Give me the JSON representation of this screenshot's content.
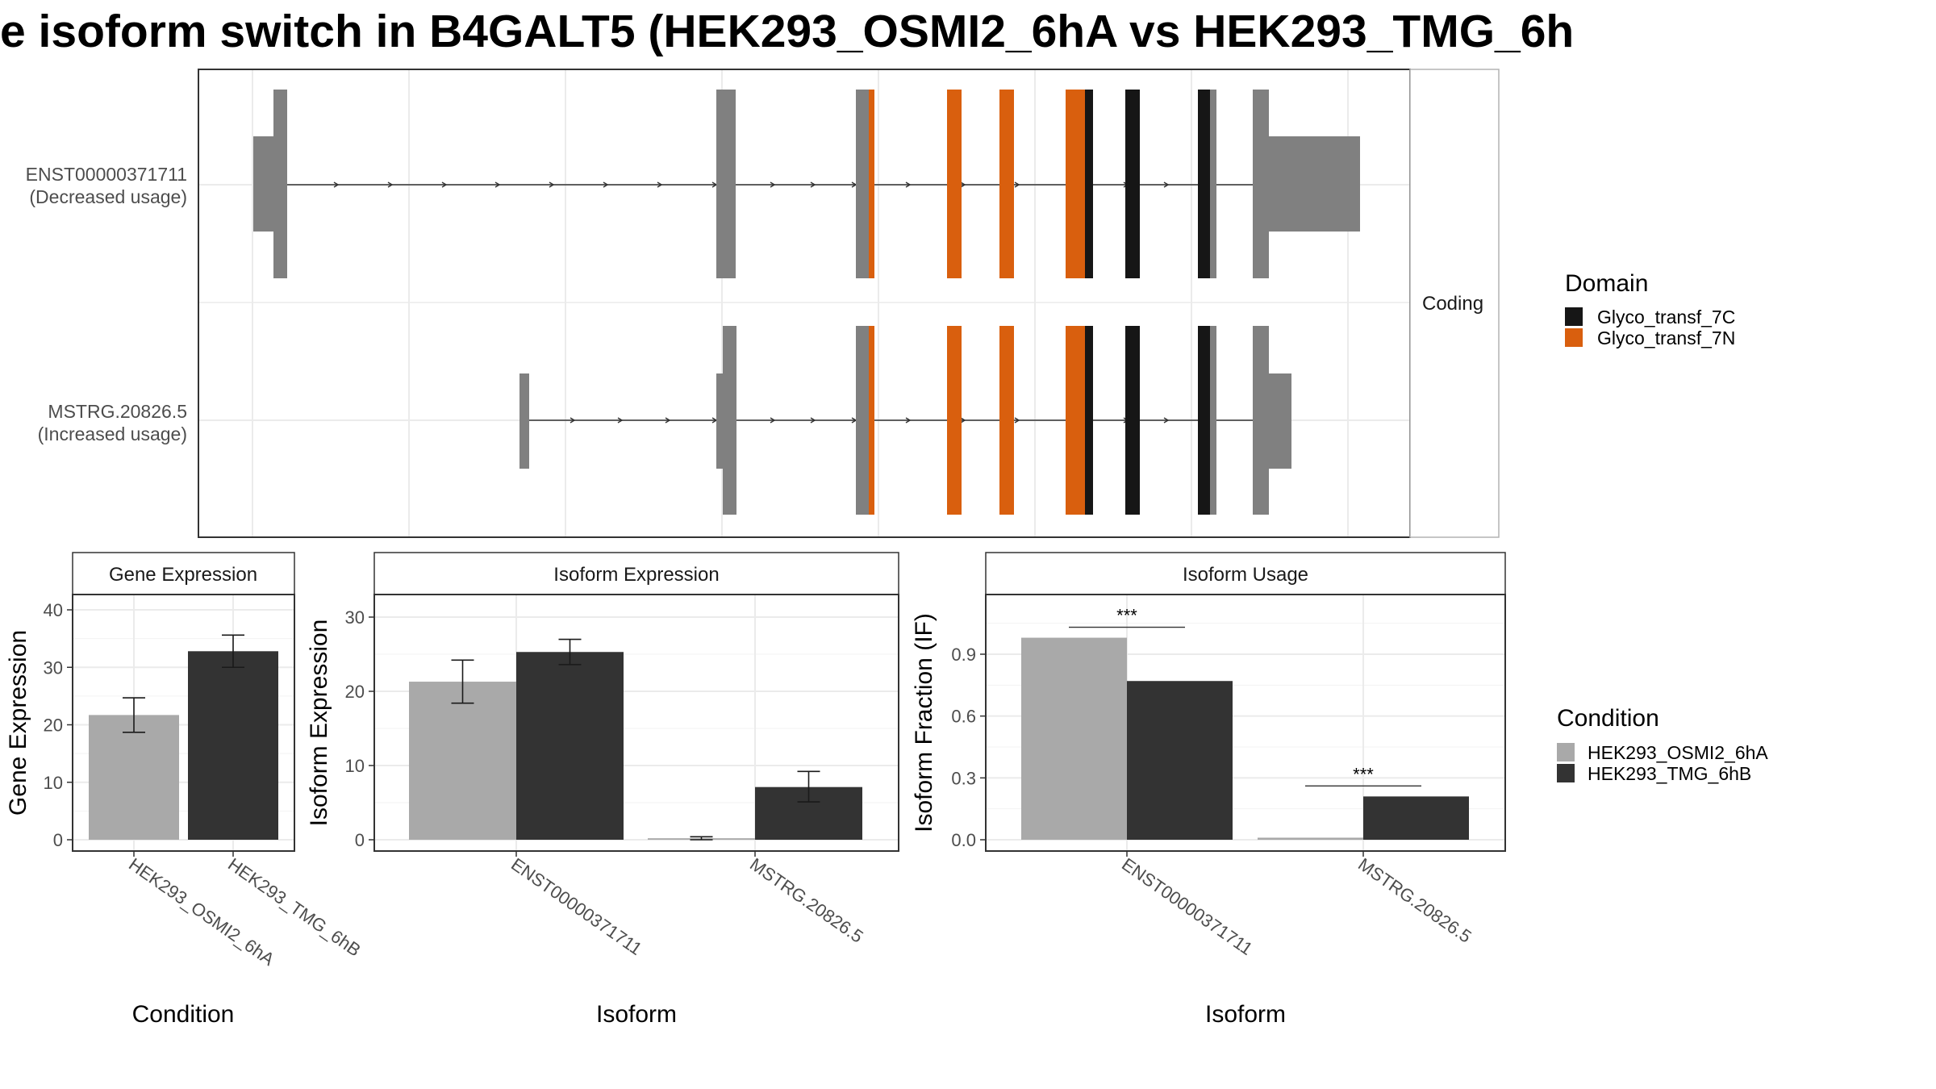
{
  "title": "e isoform switch in B4GALT5 (HEK293_OSMI2_6hA vs HEK293_TMG_6h",
  "colors": {
    "osmi": "#a9a9a9",
    "tmg": "#333333",
    "exon": "#808080",
    "glyco_7C": "#161616",
    "glyco_7N": "#d95f0e"
  },
  "structure": {
    "strip_label": "Coding",
    "transcripts": [
      {
        "id": "ENST00000371711",
        "label_line1": "ENST00000371711",
        "label_line2": "(Decreased usage)"
      },
      {
        "id": "MSTRG.20826.5",
        "label_line1": "MSTRG.20826.5",
        "label_line2": "(Increased usage)"
      }
    ],
    "domain_legend": {
      "title": "Domain",
      "items": [
        {
          "name": "Glyco_transf_7C",
          "color": "#161616"
        },
        {
          "name": "Glyco_transf_7N",
          "color": "#d95f0e"
        }
      ]
    }
  },
  "condition_legend": {
    "title": "Condition",
    "items": [
      {
        "name": "HEK293_OSMI2_6hA",
        "color": "#a9a9a9"
      },
      {
        "name": "HEK293_TMG_6hB",
        "color": "#333333"
      }
    ]
  },
  "chart_data": [
    {
      "type": "bar",
      "panel": "Gene Expression",
      "strip_label": "Gene Expression",
      "xlabel": "Condition",
      "ylabel": "Gene Expression",
      "categories": [
        "HEK293_OSMI2_6hA",
        "HEK293_TMG_6hB"
      ],
      "values": [
        21.7,
        32.8
      ],
      "errors": [
        [
          18.7,
          24.7
        ],
        [
          30.0,
          35.6
        ]
      ],
      "ylim": [
        0,
        44
      ],
      "yticks": [
        0,
        10,
        20,
        30,
        40
      ],
      "tick_labels": [
        "0",
        "10",
        "20",
        "30",
        "40"
      ]
    },
    {
      "type": "bar",
      "panel": "Isoform Expression",
      "strip_label": "Isoform Expression",
      "xlabel": "Isoform",
      "ylabel": "Isoform Expression",
      "categories": [
        "ENST00000371711",
        "MSTRG.20826.5"
      ],
      "series": [
        {
          "name": "HEK293_OSMI2_6hA",
          "values": [
            21.3,
            0.2
          ],
          "errors": [
            [
              18.4,
              24.2
            ],
            [
              0.0,
              0.4
            ]
          ]
        },
        {
          "name": "HEK293_TMG_6hB",
          "values": [
            25.3,
            7.1
          ],
          "errors": [
            [
              23.6,
              27.0
            ],
            [
              5.1,
              9.2
            ]
          ]
        }
      ],
      "ylim": [
        0,
        33
      ],
      "yticks": [
        0,
        10,
        20,
        30
      ],
      "tick_labels": [
        "0",
        "10",
        "20",
        "30"
      ]
    },
    {
      "type": "bar",
      "panel": "Isoform Usage",
      "strip_label": "Isoform Usage",
      "xlabel": "Isoform",
      "ylabel": "Isoform Fraction (IF)",
      "categories": [
        "ENST00000371711",
        "MSTRG.20826.5"
      ],
      "series": [
        {
          "name": "HEK293_OSMI2_6hA",
          "values": [
            0.98,
            0.01
          ]
        },
        {
          "name": "HEK293_TMG_6hB",
          "values": [
            0.77,
            0.21
          ]
        }
      ],
      "significance": [
        "***",
        "***"
      ],
      "ylim": [
        0,
        1.19
      ],
      "yticks": [
        0,
        0.3,
        0.6,
        0.9
      ],
      "tick_labels": [
        "0.0",
        "0.3",
        "0.6",
        "0.9"
      ]
    }
  ]
}
